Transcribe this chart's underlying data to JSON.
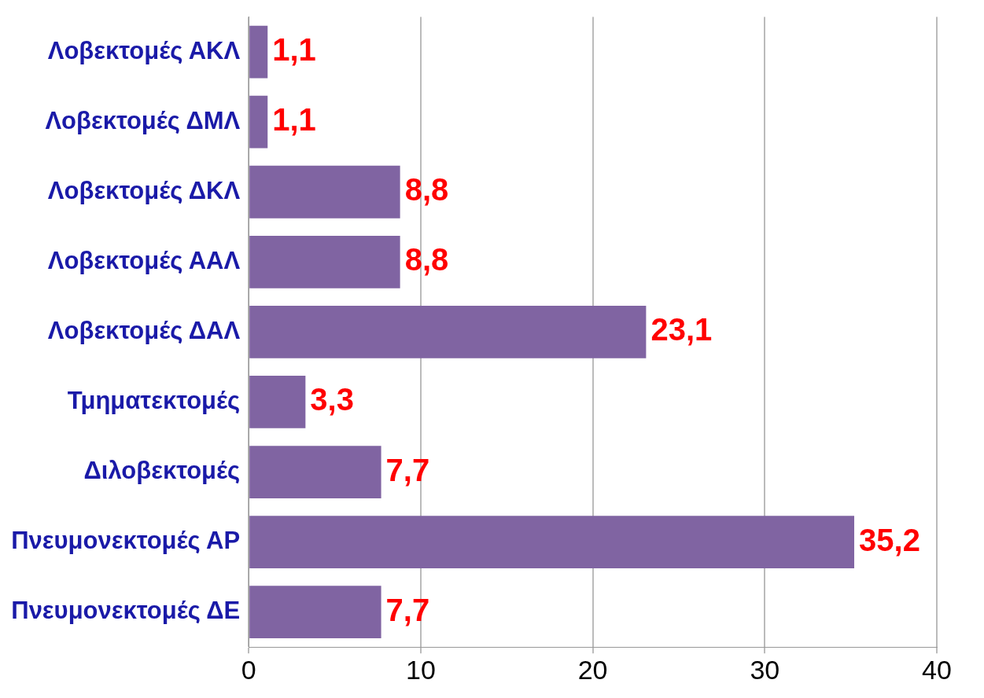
{
  "chart_data": {
    "type": "bar",
    "orientation": "horizontal",
    "categories": [
      "Λοβεκτομές ΑΚΛ",
      "Λοβεκτομές ΔΜΛ",
      "Λοβεκτομές ΔΚΛ",
      "Λοβεκτομές ΑΑΛ",
      "Λοβεκτομές ΔΑΛ",
      "Τμηματεκτομές",
      "Διλοβεκτομές",
      "Πνευμονεκτομές ΑΡ",
      "Πνευμονεκτομές ΔΕ"
    ],
    "values": [
      1.1,
      1.1,
      8.8,
      8.8,
      23.1,
      3.3,
      7.7,
      35.2,
      7.7
    ],
    "value_labels": [
      "1,1",
      "1,1",
      "8,8",
      "8,8",
      "23,1",
      "3,3",
      "7,7",
      "35,2",
      "7,7"
    ],
    "color": "#8064a2",
    "xlim": [
      0,
      40
    ],
    "xticks": [
      0,
      10,
      20,
      30,
      40
    ],
    "grid": "x"
  }
}
